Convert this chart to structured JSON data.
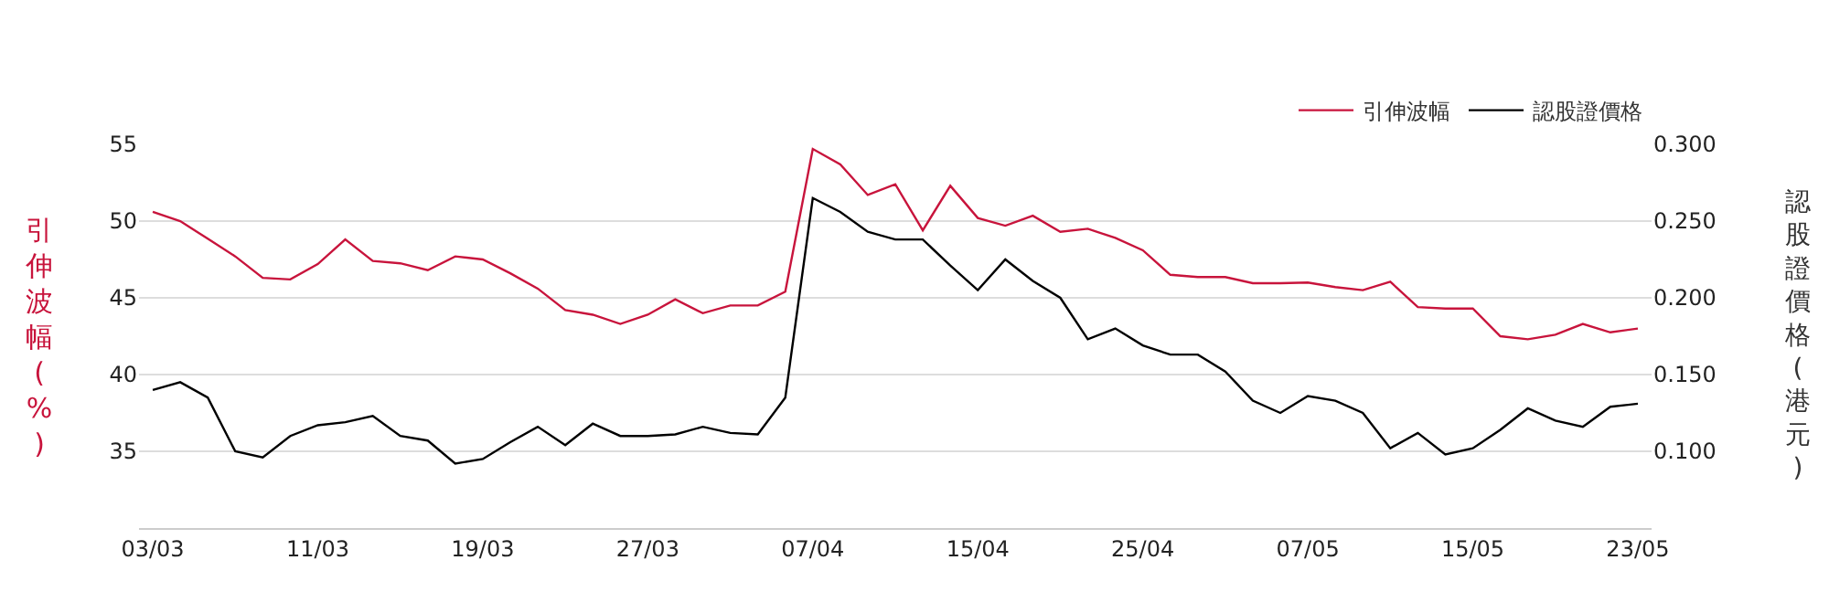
{
  "chart_data": {
    "type": "line",
    "ylabel": "引伸波幅 (%)",
    "y2label": "認股證價格 (港元)",
    "categories": [
      "03/03",
      null,
      null,
      null,
      null,
      null,
      "11/03",
      null,
      null,
      null,
      null,
      null,
      "19/03",
      null,
      null,
      null,
      null,
      null,
      "27/03",
      null,
      null,
      null,
      null,
      null,
      "07/04",
      null,
      null,
      null,
      null,
      null,
      "15/04",
      null,
      null,
      null,
      null,
      null,
      "25/04",
      null,
      null,
      null,
      null,
      null,
      "07/05",
      null,
      null,
      null,
      null,
      null,
      "15/05",
      null,
      null,
      null,
      null,
      null,
      "23/05"
    ],
    "series": [
      {
        "name": "引伸波幅",
        "color": "#c8143c",
        "values": [
          50.6,
          50.0,
          48.85,
          47.7,
          46.3,
          46.2,
          47.2,
          48.8,
          47.4,
          47.25,
          46.8,
          47.7,
          47.5,
          46.6,
          45.6,
          44.2,
          43.9,
          43.3,
          43.9,
          44.9,
          44.0,
          44.5,
          44.5,
          45.4,
          54.7,
          53.7,
          51.7,
          52.4,
          49.4,
          52.3,
          50.2,
          49.7,
          50.35,
          49.3,
          49.5,
          48.9,
          48.1,
          46.5,
          46.35,
          46.35,
          45.95,
          45.95,
          46.0,
          45.7,
          45.5,
          46.05,
          44.4,
          44.3,
          44.3,
          42.5,
          42.3,
          42.6,
          43.3,
          42.75,
          43.0
        ]
      },
      {
        "name": "認股證價格",
        "color": "#000000",
        "axis": "y2",
        "values": [
          0.14,
          0.145,
          0.135,
          0.1,
          0.096,
          0.11,
          0.117,
          0.119,
          0.123,
          0.11,
          0.107,
          0.092,
          0.095,
          0.106,
          0.116,
          0.104,
          0.118,
          0.11,
          0.11,
          0.111,
          0.116,
          0.112,
          0.111,
          0.135,
          0.265,
          0.256,
          0.243,
          0.238,
          0.238,
          0.221,
          0.205,
          0.225,
          0.211,
          0.2,
          0.173,
          0.18,
          0.169,
          0.163,
          0.163,
          0.152,
          0.133,
          0.125,
          0.136,
          0.133,
          0.125,
          0.102,
          0.112,
          0.098,
          0.102,
          0.114,
          0.128,
          0.12,
          0.116,
          0.129,
          0.131
        ]
      }
    ],
    "ylim": [
      30,
      55
    ],
    "yticks": [
      35,
      40,
      45,
      50,
      55
    ],
    "y2lim": [
      0.05,
      0.3
    ],
    "y2ticks": [
      {
        "value": 0.1,
        "label": "0.100"
      },
      {
        "value": 0.15,
        "label": "0.150"
      },
      {
        "value": 0.2,
        "label": "0.200"
      },
      {
        "value": 0.25,
        "label": "0.250"
      },
      {
        "value": 0.3,
        "label": "0.300"
      }
    ],
    "grid": "y",
    "legend": "top right",
    "marker": "none",
    "line_style": "solid"
  }
}
